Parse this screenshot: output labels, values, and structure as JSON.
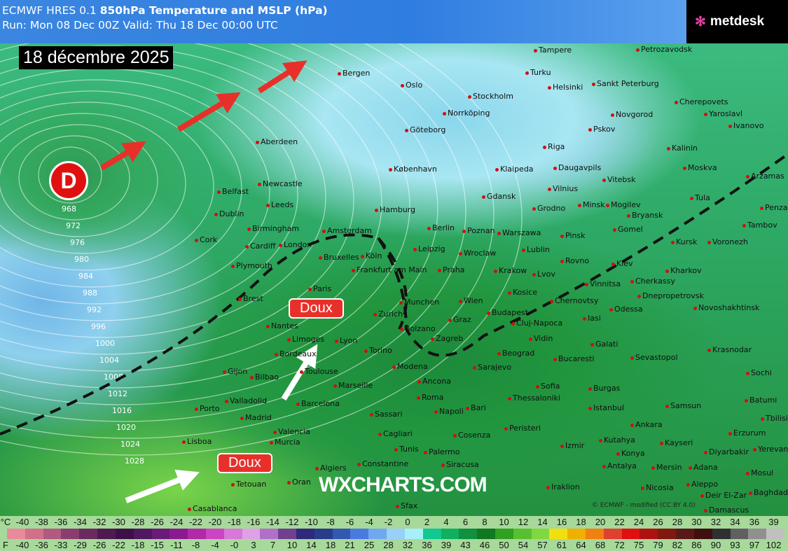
{
  "header": {
    "model": "ECMWF HRES 0.1",
    "product": "850hPa Temperature and MSLP (hPa)",
    "run": "Run: Mon 08 Dec 00Z Valid: Thu 18 Dec 00:00 UTC"
  },
  "date_label": "18 décembre 2025",
  "logo": {
    "text": "metdesk"
  },
  "low_marker": "D",
  "annotations": [
    "Doux",
    "Doux"
  ],
  "watermark": "WXCHARTS.COM",
  "credit": "© ECMWF - modified (CC BY 4.0)",
  "isobar_labels": [
    "968",
    "972",
    "976",
    "980",
    "984",
    "988",
    "992",
    "996",
    "1000",
    "1004",
    "1008",
    "1012",
    "1016",
    "1020",
    "1024",
    "1028"
  ],
  "cities": [
    "Bergen",
    "Oslo",
    "Stockholm",
    "Tampere",
    "Turku",
    "Helsinki",
    "Sankt Peterburg",
    "Petrozavodsk",
    "Norrköping",
    "Göteborg",
    "København",
    "Klaipeda",
    "Riga",
    "Daugavpils",
    "Pskov",
    "Novgorod",
    "Cherepovets",
    "Yaroslavl",
    "Ivanovo",
    "Kalinin",
    "Moskva",
    "Arzamas",
    "Tula",
    "Vitebsk",
    "Vilnius",
    "Minsk",
    "Mogilev",
    "Grodno",
    "Gdansk",
    "Hamburg",
    "Aberdeen",
    "Newcastle",
    "Belfast",
    "Dublin",
    "Leeds",
    "Birmingham",
    "Cork",
    "Cardiff",
    "London",
    "Plymouth",
    "Amsterdam",
    "Bruxelles",
    "Köln",
    "Frankfurt am Main",
    "Berlin",
    "Poznan",
    "Warszawa",
    "Leipzig",
    "Wroclaw",
    "Praha",
    "Krakow",
    "Lublin",
    "Pinsk",
    "Gomel",
    "Bryansk",
    "Kursk",
    "Voronezh",
    "Tambov",
    "Penza",
    "Rovno",
    "Kiev",
    "Lvov",
    "Kharkov",
    "Paris",
    "Brest",
    "Nantes",
    "Munchen",
    "Zurich",
    "Wien",
    "Budapest",
    "Kosice",
    "Chernovtsy",
    "Vinnitsa",
    "Cherkassy",
    "Dnepropetrovsk",
    "Novoshakhtinsk",
    "Limoges",
    "Lyon",
    "Bordeaux",
    "Torino",
    "Bolzano",
    "Graz",
    "Zagreb",
    "Cluj-Napoca",
    "Iasi",
    "Odessa",
    "Galati",
    "Krasnodar",
    "Sevastopol",
    "Sochi",
    "Gijon",
    "Bilbao",
    "Toulouse",
    "Marseille",
    "Modena",
    "Ancona",
    "Sarajevo",
    "Beograd",
    "Vidin",
    "Bucaresti",
    "Valladolid",
    "Porto",
    "Madrid",
    "Barcelona",
    "Roma",
    "Sofia",
    "Burgas",
    "Istanbul",
    "Samsun",
    "Batumi",
    "Tbilisi",
    "Erzurum",
    "Yerevan",
    "Lisboa",
    "Valencia",
    "Sassari",
    "Napoli",
    "Bari",
    "Thessaloniki",
    "Ankara",
    "Kayseri",
    "Diyarbakir",
    "Murcia",
    "Cagliari",
    "Cosenza",
    "Peristeri",
    "Izmir",
    "Kutahya",
    "Konya",
    "Palermo",
    "Siracusa",
    "Algiers",
    "Constantine",
    "Tunis",
    "Antalya",
    "Mersin",
    "Adana",
    "Aleppo",
    "Mosul",
    "Tetouan",
    "Oran",
    "Sfax",
    "Iraklion",
    "Nicosia",
    "Deir El-Zar",
    "Casablanca",
    "Damascus",
    "Baghdad"
  ],
  "legend": {
    "celsius_unit": "°C",
    "fahrenheit_unit": "F",
    "celsius": [
      "-40",
      "-38",
      "-36",
      "-34",
      "-32",
      "-30",
      "-28",
      "-26",
      "-24",
      "-22",
      "-20",
      "-18",
      "-16",
      "-14",
      "-12",
      "-10",
      "-8",
      "-6",
      "-4",
      "-2",
      "0",
      "2",
      "4",
      "6",
      "8",
      "10",
      "12",
      "14",
      "16",
      "18",
      "20",
      "22",
      "24",
      "26",
      "28",
      "30",
      "32",
      "34",
      "36",
      "39"
    ],
    "fahrenheit": [
      "-40",
      "-36",
      "-33",
      "-29",
      "-26",
      "-22",
      "-18",
      "-15",
      "-11",
      "-8",
      "-4",
      "-0",
      "3",
      "7",
      "10",
      "14",
      "18",
      "21",
      "25",
      "28",
      "32",
      "36",
      "39",
      "43",
      "46",
      "50",
      "54",
      "57",
      "61",
      "64",
      "68",
      "72",
      "75",
      "79",
      "82",
      "86",
      "90",
      "93",
      "97",
      "102"
    ],
    "colors": [
      "#e88a9a",
      "#d0708a",
      "#b05a80",
      "#8a3e70",
      "#6a2a60",
      "#4e1a50",
      "#3e1048",
      "#501860",
      "#6a1a78",
      "#8a1a90",
      "#b02aa8",
      "#cc44c4",
      "#d878d8",
      "#e0a0e8",
      "#b070c8",
      "#704090",
      "#30287a",
      "#283c8a",
      "#3258b0",
      "#4a7ae0",
      "#70a8f0",
      "#98d0f8",
      "#a8f0f8",
      "#10c890",
      "#10b060",
      "#109040",
      "#107820",
      "#30a020",
      "#58c030",
      "#80d840",
      "#f0e010",
      "#f0b000",
      "#f08010",
      "#e04030",
      "#e01010",
      "#b01010",
      "#801810",
      "#5a1818",
      "#401010",
      "#303030",
      "#606060",
      "#909090",
      "#c0c0c0"
    ],
    "fill_colors_note": ""
  }
}
